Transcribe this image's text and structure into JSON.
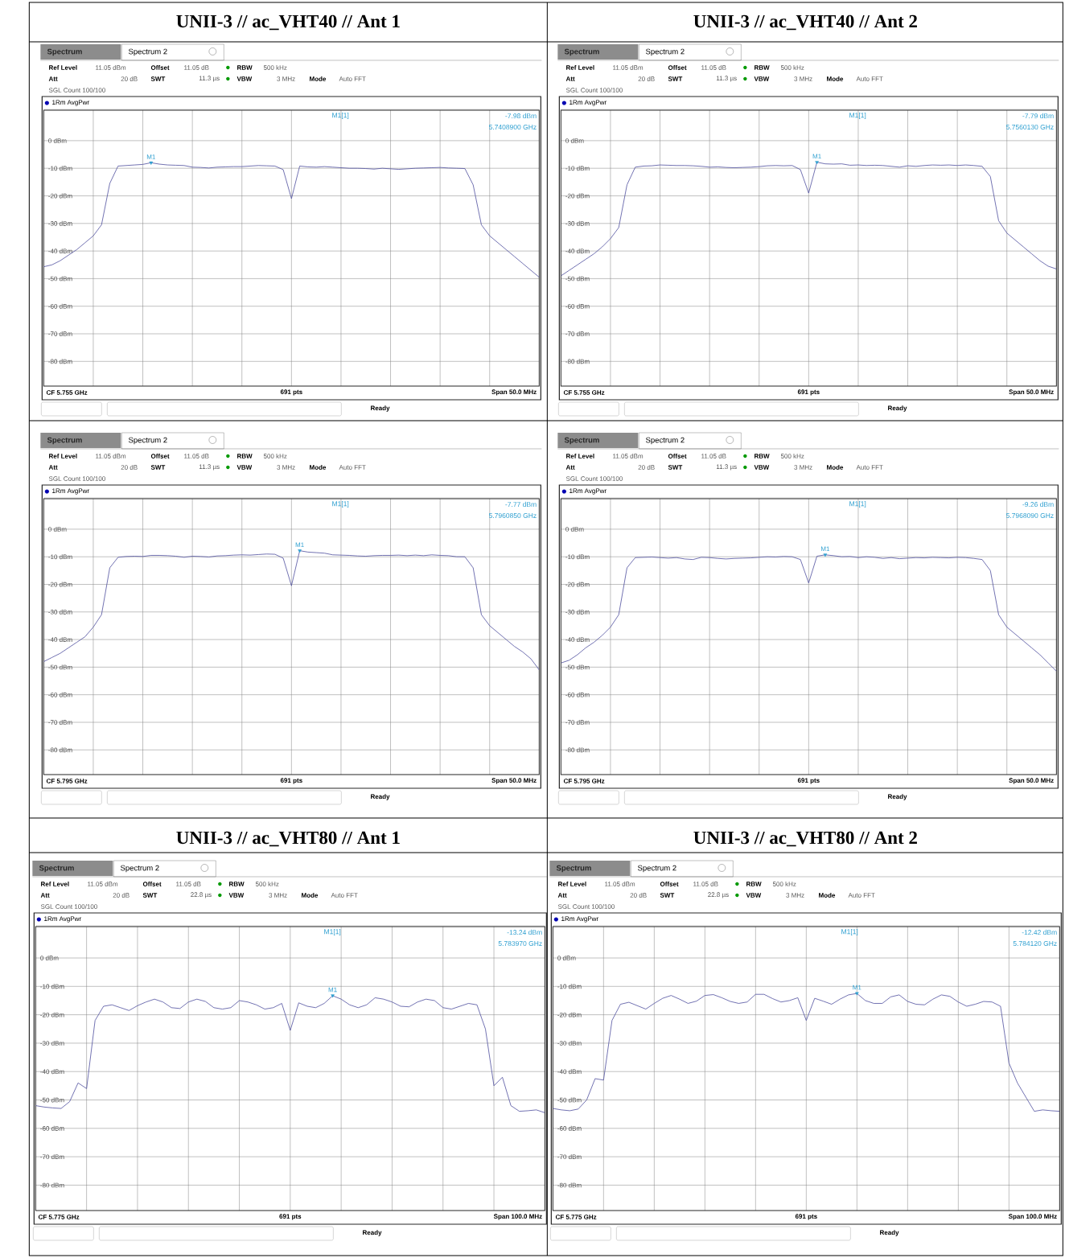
{
  "chart_data": [
    {
      "type": "line",
      "title": "UNII-3 // ac_VHT40 // Ant 1",
      "categories": [
        null,
        null,
        null,
        null,
        null,
        null,
        null,
        null,
        null,
        null,
        null,
        null,
        null,
        null,
        null,
        null,
        null,
        null,
        null,
        null,
        null,
        null,
        null,
        null,
        null,
        null,
        null,
        null,
        null,
        null,
        null,
        null,
        null,
        null,
        null,
        null,
        null,
        null,
        null,
        null,
        null,
        null,
        null,
        null,
        null,
        null,
        null,
        null,
        null,
        null,
        null,
        null,
        null,
        null,
        null,
        null,
        null,
        null,
        null,
        null,
        null
      ],
      "series": [
        {
          "color": "#4f4f9e",
          "values": [
            -45.7,
            -45,
            -43.5,
            -41.5,
            -39.5,
            -37,
            -34.5,
            -30.5,
            -15.5,
            -9.2,
            -9.0,
            -8.8,
            -8.6,
            -8.0,
            -8.5,
            -8.8,
            -8.9,
            -9.0,
            -9.6,
            -9.7,
            -9.9,
            -9.6,
            -9.5,
            -9.4,
            -9.4,
            -9.2,
            -9.0,
            -9.1,
            -9.2,
            -10.5,
            -21,
            -9.2,
            -9.5,
            -9.6,
            -9.4,
            -9.6,
            -9.8,
            -10.0,
            -10.0,
            -10.1,
            -10.3,
            -10.0,
            -10.2,
            -10.4,
            -10.2,
            -10.0,
            -9.9,
            -9.8,
            -9.7,
            -9.9,
            -10.0,
            -10.1,
            -16,
            -30.5,
            -34.5,
            -37,
            -39.5,
            -42,
            -44.5,
            -47,
            -49.5
          ]
        },
        {
          "name": "M1",
          "type": "scatter",
          "marker": "triangle",
          "color": "#2e9fd0",
          "values": [
            null,
            null,
            null,
            null,
            null,
            null,
            null,
            null,
            null,
            null,
            null,
            null,
            null,
            -7.98,
            null,
            null,
            null,
            null,
            null,
            null,
            null,
            null,
            null,
            null,
            null,
            null,
            null,
            null,
            null,
            null,
            null,
            null,
            null,
            null,
            null,
            null,
            null,
            null,
            null,
            null,
            null,
            null,
            null,
            null,
            null,
            null,
            null,
            null,
            null,
            null,
            null,
            null,
            null,
            null,
            null,
            null,
            null,
            null,
            null,
            null,
            null
          ]
        }
      ],
      "ylim": [
        -88.95,
        11.05
      ],
      "yticks": [
        {
          "value": 0,
          "label": "0 dBm"
        },
        {
          "value": -10,
          "label": "-10 dBm"
        },
        {
          "value": -20,
          "label": "-20 dBm"
        },
        {
          "value": -30,
          "label": "-30 dBm"
        },
        {
          "value": -40,
          "label": "-40 dBm"
        },
        {
          "value": -50,
          "label": "-50 dBm"
        },
        {
          "value": -60,
          "label": "-60 dBm"
        },
        {
          "value": -70,
          "label": "-70 dBm"
        },
        {
          "value": -80,
          "label": "-80 dBm"
        }
      ],
      "grid": true,
      "annotations": [
        "Spectrum",
        "Spectrum 2",
        "Ref Level",
        "11.05 dBm",
        "Offset",
        "11.05 dB",
        "RBW",
        "500 kHz",
        "Att",
        "20 dB",
        "SWT",
        "11.3 µs",
        "VBW",
        "3 MHz",
        "Mode",
        "Auto FFT",
        "SGL Count 100/100",
        "1Rm AvgPwr",
        "M1[1]",
        "-7.98 dBm",
        "5.7408900 GHz",
        "CF 5.755 GHz",
        "691 pts",
        "Span 50.0 MHz",
        "Ready"
      ]
    },
    {
      "type": "line",
      "title": "UNII-3 // ac_VHT40 // Ant 2",
      "categories": [
        null,
        null,
        null,
        null,
        null,
        null,
        null,
        null,
        null,
        null,
        null,
        null,
        null,
        null,
        null,
        null,
        null,
        null,
        null,
        null,
        null,
        null,
        null,
        null,
        null,
        null,
        null,
        null,
        null,
        null,
        null,
        null,
        null,
        null,
        null,
        null,
        null,
        null,
        null,
        null,
        null,
        null,
        null,
        null,
        null,
        null,
        null,
        null,
        null,
        null,
        null,
        null,
        null,
        null,
        null,
        null,
        null,
        null,
        null,
        null,
        null
      ],
      "series": [
        {
          "color": "#4f4f9e",
          "values": [
            -49,
            -47,
            -45,
            -43,
            -41,
            -38.5,
            -35.5,
            -31.5,
            -16,
            -9.6,
            -9.2,
            -9.1,
            -8.8,
            -8.9,
            -9.0,
            -9.0,
            -9.1,
            -9.3,
            -9.6,
            -9.5,
            -9.7,
            -9.8,
            -9.7,
            -9.6,
            -9.4,
            -9.1,
            -9.0,
            -9.1,
            -9.0,
            -10.5,
            -19,
            -7.8,
            -8.4,
            -8.5,
            -8.4,
            -8.9,
            -8.8,
            -9.0,
            -8.9,
            -9.0,
            -9.3,
            -9.6,
            -9.1,
            -9.3,
            -9.0,
            -8.8,
            -8.9,
            -8.8,
            -9.0,
            -8.8,
            -9.0,
            -9.3,
            -13,
            -29,
            -33.5,
            -36,
            -38.5,
            -41,
            -43.5,
            -45.5,
            -46.5
          ]
        },
        {
          "name": "M1",
          "type": "scatter",
          "marker": "triangle",
          "color": "#2e9fd0",
          "values": [
            null,
            null,
            null,
            null,
            null,
            null,
            null,
            null,
            null,
            null,
            null,
            null,
            null,
            null,
            null,
            null,
            null,
            null,
            null,
            null,
            null,
            null,
            null,
            null,
            null,
            null,
            null,
            null,
            null,
            null,
            null,
            -7.79,
            null,
            null,
            null,
            null,
            null,
            null,
            null,
            null,
            null,
            null,
            null,
            null,
            null,
            null,
            null,
            null,
            null,
            null,
            null,
            null,
            null,
            null,
            null,
            null,
            null,
            null,
            null,
            null,
            null
          ]
        }
      ],
      "ylim": [
        -88.95,
        11.05
      ],
      "yticks": [
        {
          "value": 0,
          "label": "0 dBm"
        },
        {
          "value": -10,
          "label": "-10 dBm"
        },
        {
          "value": -20,
          "label": "-20 dBm"
        },
        {
          "value": -30,
          "label": "-30 dBm"
        },
        {
          "value": -40,
          "label": "-40 dBm"
        },
        {
          "value": -50,
          "label": "-50 dBm"
        },
        {
          "value": -60,
          "label": "-60 dBm"
        },
        {
          "value": -70,
          "label": "-70 dBm"
        },
        {
          "value": -80,
          "label": "-80 dBm"
        }
      ],
      "grid": true,
      "annotations": [
        "Spectrum",
        "Spectrum 2",
        "Ref Level",
        "11.05 dBm",
        "Offset",
        "11.05 dB",
        "RBW",
        "500 kHz",
        "Att",
        "20 dB",
        "SWT",
        "11.3 µs",
        "VBW",
        "3 MHz",
        "Mode",
        "Auto FFT",
        "SGL Count 100/100",
        "1Rm AvgPwr",
        "M1[1]",
        "-7.79 dBm",
        "5.7560130 GHz",
        "CF 5.755 GHz",
        "691 pts",
        "Span 50.0 MHz",
        "Ready"
      ]
    },
    {
      "type": "line",
      "categories": [
        null,
        null,
        null,
        null,
        null,
        null,
        null,
        null,
        null,
        null,
        null,
        null,
        null,
        null,
        null,
        null,
        null,
        null,
        null,
        null,
        null,
        null,
        null,
        null,
        null,
        null,
        null,
        null,
        null,
        null,
        null,
        null,
        null,
        null,
        null,
        null,
        null,
        null,
        null,
        null,
        null,
        null,
        null,
        null,
        null,
        null,
        null,
        null,
        null,
        null,
        null,
        null,
        null,
        null,
        null,
        null,
        null,
        null,
        null,
        null,
        null
      ],
      "series": [
        {
          "color": "#4f4f9e",
          "values": [
            -48,
            -46.5,
            -45,
            -43,
            -41,
            -39,
            -35.5,
            -31,
            -14,
            -10.2,
            -9.9,
            -9.8,
            -9.9,
            -9.5,
            -9.5,
            -9.6,
            -9.8,
            -10.2,
            -9.8,
            -9.9,
            -10.1,
            -9.7,
            -9.6,
            -9.4,
            -9.3,
            -9.4,
            -9.2,
            -9.0,
            -9.1,
            -10.5,
            -20.5,
            -7.8,
            -8.3,
            -8.5,
            -8.7,
            -9.3,
            -9.4,
            -9.5,
            -9.7,
            -9.8,
            -9.6,
            -9.5,
            -9.5,
            -9.4,
            -9.6,
            -9.4,
            -9.6,
            -9.3,
            -9.5,
            -9.6,
            -10.0,
            -10.0,
            -14,
            -31,
            -35,
            -37.5,
            -40,
            -42.5,
            -44.5,
            -47,
            -51
          ]
        },
        {
          "name": "M1",
          "type": "scatter",
          "marker": "triangle",
          "color": "#2e9fd0",
          "values": [
            null,
            null,
            null,
            null,
            null,
            null,
            null,
            null,
            null,
            null,
            null,
            null,
            null,
            null,
            null,
            null,
            null,
            null,
            null,
            null,
            null,
            null,
            null,
            null,
            null,
            null,
            null,
            null,
            null,
            null,
            null,
            -7.77,
            null,
            null,
            null,
            null,
            null,
            null,
            null,
            null,
            null,
            null,
            null,
            null,
            null,
            null,
            null,
            null,
            null,
            null,
            null,
            null,
            null,
            null,
            null,
            null,
            null,
            null,
            null,
            null,
            null
          ]
        }
      ],
      "ylim": [
        -88.95,
        11.05
      ],
      "yticks": [
        {
          "value": 0,
          "label": "0 dBm"
        },
        {
          "value": -10,
          "label": "-10 dBm"
        },
        {
          "value": -20,
          "label": "-20 dBm"
        },
        {
          "value": -30,
          "label": "-30 dBm"
        },
        {
          "value": -40,
          "label": "-40 dBm"
        },
        {
          "value": -50,
          "label": "-50 dBm"
        },
        {
          "value": -60,
          "label": "-60 dBm"
        },
        {
          "value": -70,
          "label": "-70 dBm"
        },
        {
          "value": -80,
          "label": "-80 dBm"
        }
      ],
      "grid": true,
      "annotations": [
        "Spectrum",
        "Spectrum 2",
        "Ref Level",
        "11.05 dBm",
        "Offset",
        "11.05 dB",
        "RBW",
        "500 kHz",
        "Att",
        "20 dB",
        "SWT",
        "11.3 µs",
        "VBW",
        "3 MHz",
        "Mode",
        "Auto FFT",
        "SGL Count 100/100",
        "1Rm AvgPwr",
        "M1[1]",
        "-7.77 dBm",
        "5.7960850 GHz",
        "CF 5.795 GHz",
        "691 pts",
        "Span 50.0 MHz",
        "Ready"
      ]
    },
    {
      "type": "line",
      "categories": [
        null,
        null,
        null,
        null,
        null,
        null,
        null,
        null,
        null,
        null,
        null,
        null,
        null,
        null,
        null,
        null,
        null,
        null,
        null,
        null,
        null,
        null,
        null,
        null,
        null,
        null,
        null,
        null,
        null,
        null,
        null,
        null,
        null,
        null,
        null,
        null,
        null,
        null,
        null,
        null,
        null,
        null,
        null,
        null,
        null,
        null,
        null,
        null,
        null,
        null,
        null,
        null,
        null,
        null,
        null,
        null,
        null,
        null,
        null,
        null,
        null
      ],
      "series": [
        {
          "color": "#4f4f9e",
          "values": [
            -48.5,
            -47.5,
            -45.5,
            -43,
            -41,
            -38.5,
            -35.5,
            -31,
            -14,
            -10.3,
            -10.2,
            -10.1,
            -10.3,
            -10.5,
            -10.3,
            -10.8,
            -11,
            -10.2,
            -10.3,
            -10.6,
            -10.8,
            -10.6,
            -10.5,
            -10.4,
            -10.2,
            -10.0,
            -10.1,
            -9.9,
            -10.0,
            -11,
            -19.5,
            -9.8,
            -9.3,
            -9.6,
            -10.0,
            -9.9,
            -10.3,
            -10.0,
            -10.2,
            -10.6,
            -10.3,
            -10.7,
            -10.5,
            -10.3,
            -10.4,
            -10.2,
            -10.3,
            -10.4,
            -10.2,
            -10.3,
            -10.6,
            -11,
            -15,
            -31,
            -35.5,
            -38,
            -40.5,
            -43,
            -45.5,
            -48.5,
            -51.5
          ]
        },
        {
          "name": "M1",
          "type": "scatter",
          "marker": "triangle",
          "color": "#2e9fd0",
          "values": [
            null,
            null,
            null,
            null,
            null,
            null,
            null,
            null,
            null,
            null,
            null,
            null,
            null,
            null,
            null,
            null,
            null,
            null,
            null,
            null,
            null,
            null,
            null,
            null,
            null,
            null,
            null,
            null,
            null,
            null,
            null,
            null,
            -9.26,
            null,
            null,
            null,
            null,
            null,
            null,
            null,
            null,
            null,
            null,
            null,
            null,
            null,
            null,
            null,
            null,
            null,
            null,
            null,
            null,
            null,
            null,
            null,
            null,
            null,
            null,
            null,
            null
          ]
        }
      ],
      "ylim": [
        -88.95,
        11.05
      ],
      "yticks": [
        {
          "value": 0,
          "label": "0 dBm"
        },
        {
          "value": -10,
          "label": "-10 dBm"
        },
        {
          "value": -20,
          "label": "-20 dBm"
        },
        {
          "value": -30,
          "label": "-30 dBm"
        },
        {
          "value": -40,
          "label": "-40 dBm"
        },
        {
          "value": -50,
          "label": "-50 dBm"
        },
        {
          "value": -60,
          "label": "-60 dBm"
        },
        {
          "value": -70,
          "label": "-70 dBm"
        },
        {
          "value": -80,
          "label": "-80 dBm"
        }
      ],
      "grid": true,
      "annotations": [
        "Spectrum",
        "Spectrum 2",
        "Ref Level",
        "11.05 dBm",
        "Offset",
        "11.05 dB",
        "RBW",
        "500 kHz",
        "Att",
        "20 dB",
        "SWT",
        "11.3 µs",
        "VBW",
        "3 MHz",
        "Mode",
        "Auto FFT",
        "SGL Count 100/100",
        "1Rm AvgPwr",
        "M1[1]",
        "-9.26 dBm",
        "5.7968090 GHz",
        "CF 5.795 GHz",
        "691 pts",
        "Span 50.0 MHz",
        "Ready"
      ]
    },
    {
      "type": "line",
      "title": "UNII-3 // ac_VHT80 // Ant 1",
      "categories": [
        null,
        null,
        null,
        null,
        null,
        null,
        null,
        null,
        null,
        null,
        null,
        null,
        null,
        null,
        null,
        null,
        null,
        null,
        null,
        null,
        null,
        null,
        null,
        null,
        null,
        null,
        null,
        null,
        null,
        null,
        null,
        null,
        null,
        null,
        null,
        null,
        null,
        null,
        null,
        null,
        null,
        null,
        null,
        null,
        null,
        null,
        null,
        null,
        null,
        null,
        null,
        null,
        null,
        null,
        null,
        null,
        null,
        null,
        null,
        null,
        null
      ],
      "series": [
        {
          "color": "#4f4f9e",
          "values": [
            -52,
            -52.5,
            -52.8,
            -53,
            -50.6,
            -44,
            -46,
            -22,
            -17,
            -16.5,
            -17.5,
            -18.5,
            -16.8,
            -15.5,
            -14.5,
            -15.5,
            -17.5,
            -17.8,
            -15.5,
            -14.5,
            -15.3,
            -17.5,
            -18,
            -17.5,
            -15,
            -15.5,
            -16.5,
            -18,
            -17.5,
            -16,
            -25.5,
            -15.8,
            -17,
            -17.5,
            -16,
            -13.3,
            -14.5,
            -16.5,
            -17.5,
            -16.5,
            -14,
            -14.5,
            -15.5,
            -17,
            -17.2,
            -15.5,
            -14.5,
            -15,
            -17.5,
            -18,
            -17,
            -16,
            -16.5,
            -25,
            -45,
            -42,
            -52,
            -54,
            -53.8,
            -53.5,
            -54.5
          ]
        },
        {
          "name": "M1",
          "type": "scatter",
          "marker": "triangle",
          "color": "#2e9fd0",
          "values": [
            null,
            null,
            null,
            null,
            null,
            null,
            null,
            null,
            null,
            null,
            null,
            null,
            null,
            null,
            null,
            null,
            null,
            null,
            null,
            null,
            null,
            null,
            null,
            null,
            null,
            null,
            null,
            null,
            null,
            null,
            null,
            null,
            null,
            null,
            null,
            -13.24,
            null,
            null,
            null,
            null,
            null,
            null,
            null,
            null,
            null,
            null,
            null,
            null,
            null,
            null,
            null,
            null,
            null,
            null,
            null,
            null,
            null,
            null,
            null,
            null,
            null
          ]
        }
      ],
      "ylim": [
        -88.95,
        11.05
      ],
      "yticks": [
        {
          "value": 0,
          "label": "0 dBm"
        },
        {
          "value": -10,
          "label": "-10 dBm"
        },
        {
          "value": -20,
          "label": "-20 dBm"
        },
        {
          "value": -30,
          "label": "-30 dBm"
        },
        {
          "value": -40,
          "label": "-40 dBm"
        },
        {
          "value": -50,
          "label": "-50 dBm"
        },
        {
          "value": -60,
          "label": "-60 dBm"
        },
        {
          "value": -70,
          "label": "-70 dBm"
        },
        {
          "value": -80,
          "label": "-80 dBm"
        }
      ],
      "grid": true,
      "annotations": [
        "Spectrum",
        "Spectrum 2",
        "Ref Level",
        "11.05 dBm",
        "Offset",
        "11.05 dB",
        "RBW",
        "500 kHz",
        "Att",
        "20 dB",
        "SWT",
        "22.8 µs",
        "VBW",
        "3 MHz",
        "Mode",
        "Auto FFT",
        "SGL Count 100/100",
        "1Rm AvgPwr",
        "M1[1]",
        "-13.24 dBm",
        "5.783970 GHz",
        "CF 5.775 GHz",
        "691 pts",
        "Span 100.0 MHz",
        "Ready"
      ]
    },
    {
      "type": "line",
      "title": "UNII-3 // ac_VHT80 // Ant 2",
      "categories": [
        null,
        null,
        null,
        null,
        null,
        null,
        null,
        null,
        null,
        null,
        null,
        null,
        null,
        null,
        null,
        null,
        null,
        null,
        null,
        null,
        null,
        null,
        null,
        null,
        null,
        null,
        null,
        null,
        null,
        null,
        null,
        null,
        null,
        null,
        null,
        null,
        null,
        null,
        null,
        null,
        null,
        null,
        null,
        null,
        null,
        null,
        null,
        null,
        null,
        null,
        null,
        null,
        null,
        null,
        null,
        null,
        null,
        null,
        null,
        null,
        null
      ],
      "series": [
        {
          "color": "#4f4f9e",
          "values": [
            -53,
            -53.5,
            -53.8,
            -53.2,
            -50,
            -42.5,
            -43,
            -22,
            -16.3,
            -15.6,
            -16.8,
            -18,
            -16,
            -14.2,
            -13.2,
            -14.5,
            -16,
            -15.2,
            -13.2,
            -12.9,
            -14,
            -15.3,
            -16,
            -15.5,
            -12.8,
            -12.8,
            -14.3,
            -15.5,
            -15,
            -14,
            -22,
            -14.2,
            -15.2,
            -16.3,
            -14.5,
            -13,
            -12.5,
            -15,
            -16,
            -16,
            -13.7,
            -13,
            -15.3,
            -16.3,
            -16.5,
            -14.5,
            -13,
            -13.5,
            -15.5,
            -17,
            -16.3,
            -15.3,
            -15.5,
            -17,
            -37,
            -44,
            -49,
            -54,
            -53.5,
            -53.8,
            -54
          ]
        },
        {
          "name": "M1",
          "type": "scatter",
          "marker": "triangle",
          "color": "#2e9fd0",
          "values": [
            null,
            null,
            null,
            null,
            null,
            null,
            null,
            null,
            null,
            null,
            null,
            null,
            null,
            null,
            null,
            null,
            null,
            null,
            null,
            null,
            null,
            null,
            null,
            null,
            null,
            null,
            null,
            null,
            null,
            null,
            null,
            null,
            null,
            null,
            null,
            null,
            -12.42,
            null,
            null,
            null,
            null,
            null,
            null,
            null,
            null,
            null,
            null,
            null,
            null,
            null,
            null,
            null,
            null,
            null,
            null,
            null,
            null,
            null,
            null,
            null,
            null
          ]
        }
      ],
      "ylim": [
        -88.95,
        11.05
      ],
      "yticks": [
        {
          "value": 0,
          "label": "0 dBm"
        },
        {
          "value": -10,
          "label": "-10 dBm"
        },
        {
          "value": -20,
          "label": "-20 dBm"
        },
        {
          "value": -30,
          "label": "-30 dBm"
        },
        {
          "value": -40,
          "label": "-40 dBm"
        },
        {
          "value": -50,
          "label": "-50 dBm"
        },
        {
          "value": -60,
          "label": "-60 dBm"
        },
        {
          "value": -70,
          "label": "-70 dBm"
        },
        {
          "value": -80,
          "label": "-80 dBm"
        }
      ],
      "grid": true,
      "annotations": [
        "Spectrum",
        "Spectrum 2",
        "Ref Level",
        "11.05 dBm",
        "Offset",
        "11.05 dB",
        "RBW",
        "500 kHz",
        "Att",
        "20 dB",
        "SWT",
        "22.8 µs",
        "VBW",
        "3 MHz",
        "Mode",
        "Auto FFT",
        "SGL Count 100/100",
        "1Rm AvgPwr",
        "M1[1]",
        "-12.42 dBm",
        "5.784120 GHz",
        "CF 5.775 GHz",
        "691 pts",
        "Span 100.0 MHz",
        "Ready"
      ]
    }
  ]
}
